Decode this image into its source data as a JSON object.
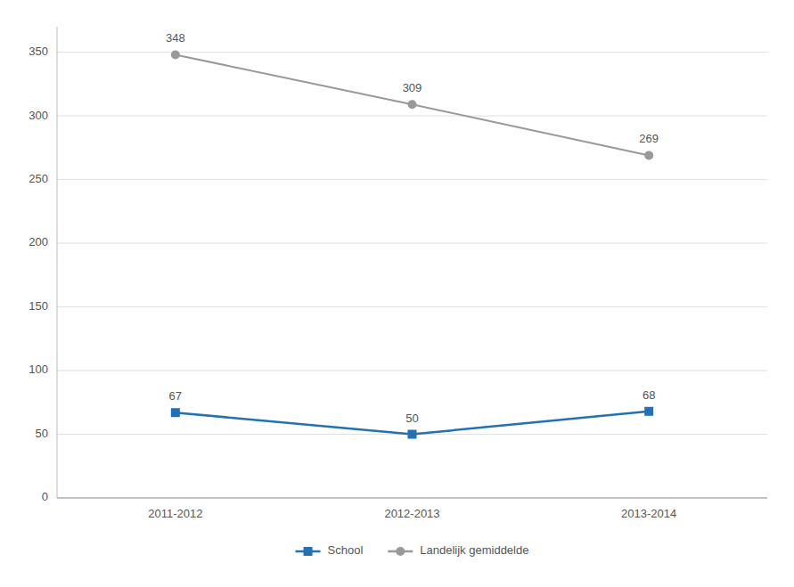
{
  "chart_data": {
    "type": "line",
    "categories": [
      "2011-2012",
      "2012-2013",
      "2013-2014"
    ],
    "series": [
      {
        "name": "School",
        "color": "#2371B5",
        "marker": "square",
        "values": [
          67,
          50,
          68
        ]
      },
      {
        "name": "Landelijk gemiddelde",
        "color": "#999999",
        "marker": "circle",
        "values": [
          348,
          309,
          269
        ]
      }
    ],
    "ylim": [
      0,
      370
    ],
    "yticks": [
      0,
      50,
      100,
      150,
      200,
      250,
      300,
      350
    ],
    "grid": true,
    "legend": "bottom",
    "data_labels": true
  }
}
